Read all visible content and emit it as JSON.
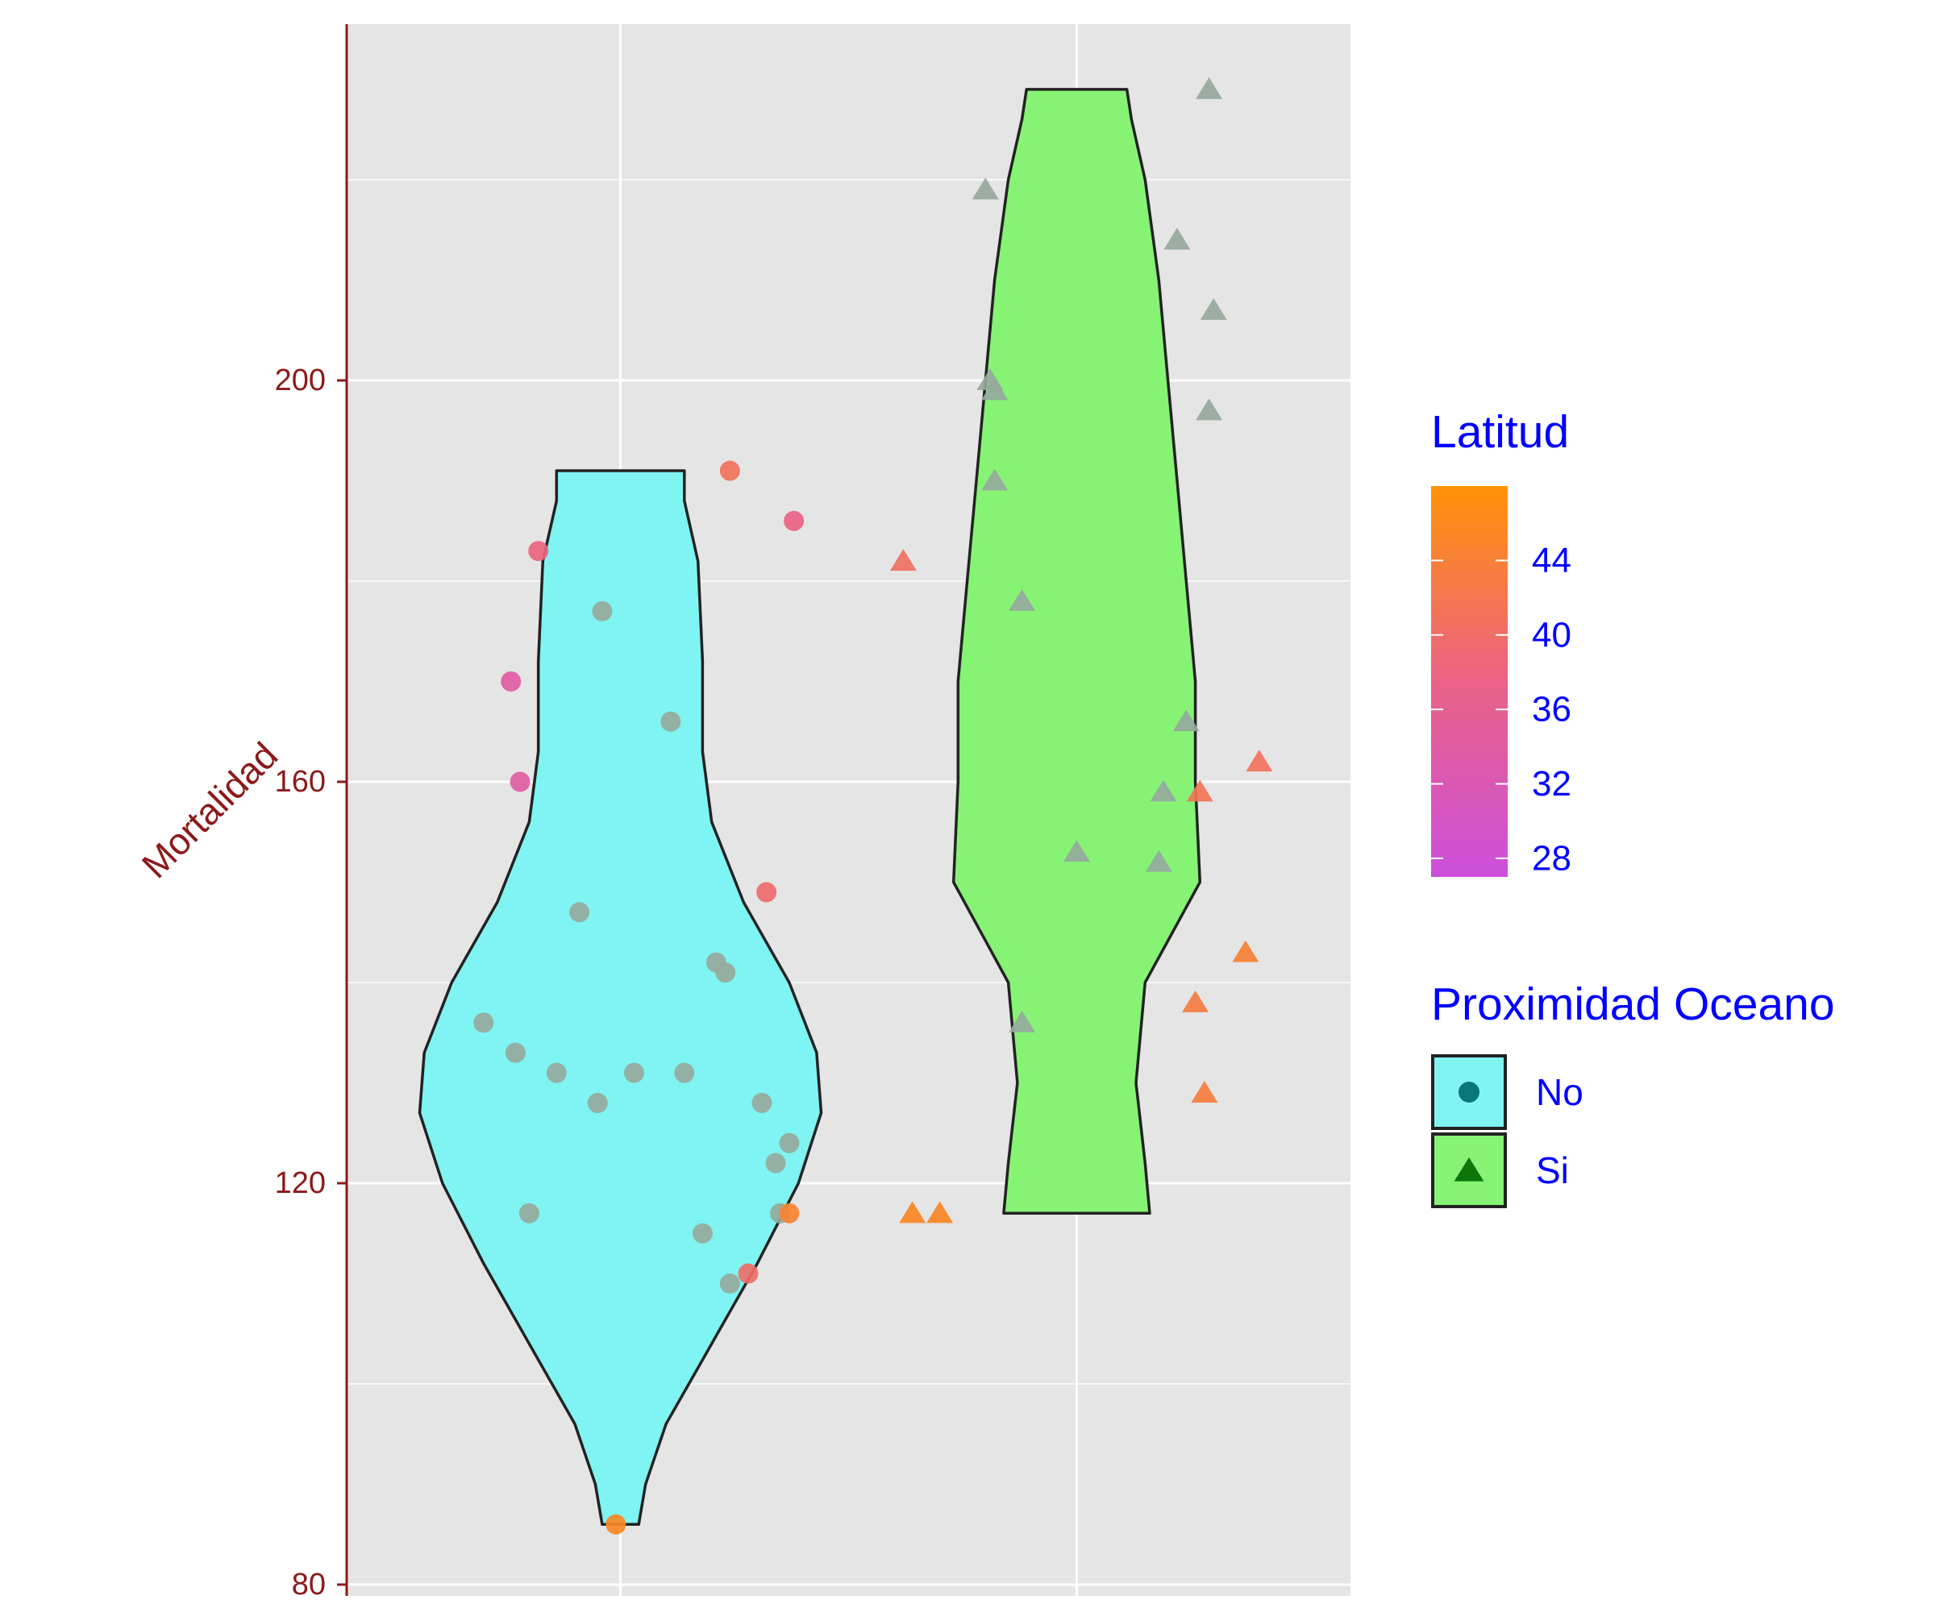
{
  "chart_data": {
    "type": "violin",
    "xlabel": "",
    "ylabel": "Mortalidad",
    "ylim": [
      80,
      230
    ],
    "y_ticks": [
      80,
      120,
      160,
      200
    ],
    "groups": [
      {
        "key": "No",
        "fill": "#7ff4f2",
        "shape": "circle",
        "violin_min": 86,
        "violin_max": 191,
        "points": [
          {
            "x": 0.7,
            "y": 136,
            "lat": 33.5
          },
          {
            "x": 0.76,
            "y": 170,
            "lat": 34.0
          },
          {
            "x": 0.77,
            "y": 133,
            "lat": 33.5
          },
          {
            "x": 0.78,
            "y": 160,
            "lat": 34.0
          },
          {
            "x": 0.8,
            "y": 117,
            "lat": 33.5
          },
          {
            "x": 0.82,
            "y": 183,
            "lat": 38.0
          },
          {
            "x": 0.86,
            "y": 131,
            "lat": 33.5
          },
          {
            "x": 0.91,
            "y": 147,
            "lat": 33.5
          },
          {
            "x": 0.95,
            "y": 128,
            "lat": 33.5
          },
          {
            "x": 0.96,
            "y": 177,
            "lat": 33.5
          },
          {
            "x": 0.99,
            "y": 86,
            "lat": 45.5
          },
          {
            "x": 1.03,
            "y": 131,
            "lat": 33.5
          },
          {
            "x": 1.11,
            "y": 166,
            "lat": 33.5
          },
          {
            "x": 1.14,
            "y": 131,
            "lat": 33.5
          },
          {
            "x": 1.18,
            "y": 115,
            "lat": 33.5
          },
          {
            "x": 1.21,
            "y": 142,
            "lat": 33.5
          },
          {
            "x": 1.23,
            "y": 141,
            "lat": 33.5
          },
          {
            "x": 1.24,
            "y": 191,
            "lat": 41.0
          },
          {
            "x": 1.24,
            "y": 110,
            "lat": 33.5
          },
          {
            "x": 1.28,
            "y": 111,
            "lat": 40.0
          },
          {
            "x": 1.31,
            "y": 128,
            "lat": 33.5
          },
          {
            "x": 1.32,
            "y": 149,
            "lat": 39.5
          },
          {
            "x": 1.34,
            "y": 122,
            "lat": 33.5
          },
          {
            "x": 1.35,
            "y": 117,
            "lat": 33.5
          },
          {
            "x": 1.37,
            "y": 117,
            "lat": 44.5
          },
          {
            "x": 1.37,
            "y": 124,
            "lat": 33.5
          },
          {
            "x": 1.38,
            "y": 186,
            "lat": 37.5
          }
        ]
      },
      {
        "key": "Si",
        "fill": "#86f375",
        "shape": "triangle",
        "violin_min": 117,
        "violin_max": 229,
        "points": [
          {
            "x": 1.62,
            "y": 182,
            "lat": 40.5
          },
          {
            "x": 1.64,
            "y": 117,
            "lat": 45.5
          },
          {
            "x": 1.7,
            "y": 117,
            "lat": 45.5
          },
          {
            "x": 1.8,
            "y": 219,
            "lat": 33.0
          },
          {
            "x": 1.81,
            "y": 200,
            "lat": 33.5
          },
          {
            "x": 1.82,
            "y": 199,
            "lat": 33.5
          },
          {
            "x": 1.82,
            "y": 190,
            "lat": 33.5
          },
          {
            "x": 1.88,
            "y": 178,
            "lat": 33.5
          },
          {
            "x": 1.88,
            "y": 136,
            "lat": 33.5
          },
          {
            "x": 2.0,
            "y": 153,
            "lat": 33.5
          },
          {
            "x": 2.18,
            "y": 152,
            "lat": 33.5
          },
          {
            "x": 2.19,
            "y": 159,
            "lat": 33.5
          },
          {
            "x": 2.22,
            "y": 214,
            "lat": 32.5
          },
          {
            "x": 2.24,
            "y": 166,
            "lat": 33.5
          },
          {
            "x": 2.26,
            "y": 138,
            "lat": 43.0
          },
          {
            "x": 2.27,
            "y": 159,
            "lat": 41.5
          },
          {
            "x": 2.28,
            "y": 129,
            "lat": 43.5
          },
          {
            "x": 2.29,
            "y": 229,
            "lat": 31.0
          },
          {
            "x": 2.29,
            "y": 197,
            "lat": 29.0
          },
          {
            "x": 2.3,
            "y": 207,
            "lat": 31.0
          },
          {
            "x": 2.37,
            "y": 143,
            "lat": 44.0
          },
          {
            "x": 2.4,
            "y": 162,
            "lat": 41.0
          }
        ]
      }
    ],
    "legend_color": {
      "title": "Latitud",
      "min": 27,
      "max": 48,
      "low_color": "#cc4fdc",
      "mid_color": "#ea6286",
      "high_color": "#ff9307",
      "breaks": [
        28,
        32,
        36,
        40,
        44
      ]
    },
    "legend_shape": {
      "title": "Proximidad Oceano",
      "items": [
        {
          "label": "No",
          "fill": "#7ff4f2",
          "shape": "circle",
          "marker_color": "#0b7878"
        },
        {
          "label": "Si",
          "fill": "#86f375",
          "shape": "triangle",
          "marker_color": "#0d760a"
        }
      ]
    },
    "colors": {
      "panel": "#e5e5e5",
      "grid": "#ffffff",
      "axis": "#8b1a1a",
      "legend_text": "#0000ff",
      "outline": "#222222",
      "neutral_point": "#96a99d"
    }
  }
}
